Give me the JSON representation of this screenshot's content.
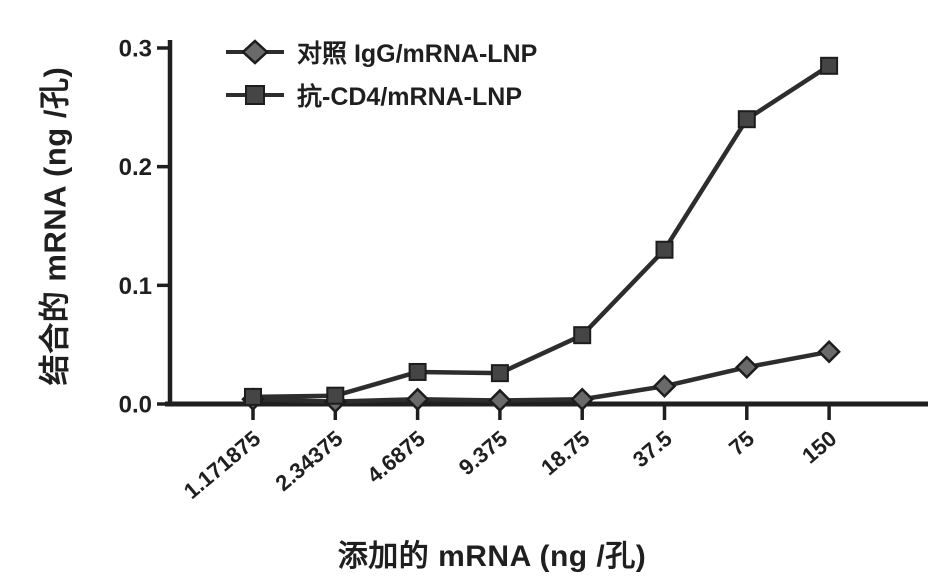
{
  "colors": {
    "line": "#2d2d2d",
    "axis": "#1f1f1f",
    "diamond_fill": "#6a6a6a",
    "square_fill": "#454545",
    "marker_stroke": "#1d1d1d",
    "background": "#ffffff"
  },
  "chart_data": {
    "type": "line",
    "categories": [
      "1.171875",
      "2.34375",
      "4.6875",
      "9.375",
      "18.75",
      "37.5",
      "75",
      "150"
    ],
    "series": [
      {
        "name": "对照 IgG/mRNA-LNP",
        "marker": "diamond",
        "values": [
          0.004,
          0.002,
          0.004,
          0.003,
          0.004,
          0.015,
          0.031,
          0.044
        ]
      },
      {
        "name": "抗-CD4/mRNA-LNP",
        "marker": "square",
        "values": [
          0.006,
          0.007,
          0.027,
          0.026,
          0.058,
          0.13,
          0.24,
          0.285
        ]
      }
    ],
    "xlabel": "添加的 mRNA (ng /孔)",
    "ylabel": "结合的 mRNA (ng /孔)",
    "yticks": [
      "0.0",
      "0.1",
      "0.2",
      "0.3"
    ],
    "ylim": [
      0,
      0.3
    ],
    "x_spacing": "equal (2-fold serial dilution)",
    "grid": false,
    "legend_position": "top-left inside plot"
  }
}
